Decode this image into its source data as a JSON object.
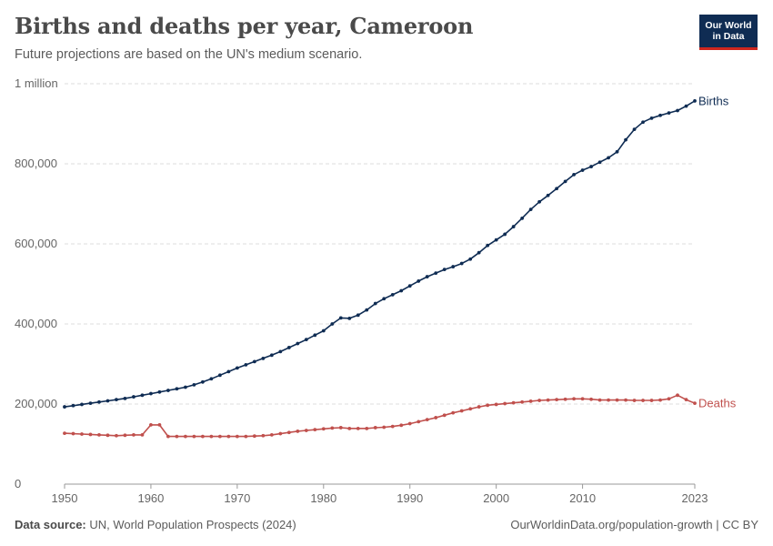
{
  "header": {
    "title": "Births and deaths per year, Cameroon",
    "subtitle": "Future projections are based on the UN's medium scenario."
  },
  "logo": {
    "line1": "Our World",
    "line2": "in Data"
  },
  "footer": {
    "source_label": "Data source:",
    "source_text": "UN, World Population Prospects (2024)",
    "link": "OurWorldinData.org/population-growth | CC BY"
  },
  "colors": {
    "births": "#0f2c53",
    "deaths": "#c0504d",
    "grid": "#dddddd",
    "axis": "#666666"
  },
  "chart_data": {
    "type": "line",
    "title": "Births and deaths per year, Cameroon",
    "subtitle": "Future projections are based on the UN's medium scenario.",
    "xlabel": "",
    "ylabel": "",
    "xlim": [
      1950,
      2023
    ],
    "ylim": [
      0,
      1000000
    ],
    "x_ticks": [
      1950,
      1960,
      1970,
      1980,
      1990,
      2000,
      2010,
      2023
    ],
    "x_tick_labels": [
      "1950",
      "1960",
      "1970",
      "1980",
      "1990",
      "2000",
      "2010",
      "2023"
    ],
    "y_ticks": [
      0,
      200000,
      400000,
      600000,
      800000,
      1000000
    ],
    "y_tick_labels": [
      "0",
      "200,000",
      "400,000",
      "600,000",
      "800,000",
      "1 million"
    ],
    "grid": "horizontal dashed",
    "legend": "inline labels at line ends (right)",
    "x": [
      1950,
      1951,
      1952,
      1953,
      1954,
      1955,
      1956,
      1957,
      1958,
      1959,
      1960,
      1961,
      1962,
      1963,
      1964,
      1965,
      1966,
      1967,
      1968,
      1969,
      1970,
      1971,
      1972,
      1973,
      1974,
      1975,
      1976,
      1977,
      1978,
      1979,
      1980,
      1981,
      1982,
      1983,
      1984,
      1985,
      1986,
      1987,
      1988,
      1989,
      1990,
      1991,
      1992,
      1993,
      1994,
      1995,
      1996,
      1997,
      1998,
      1999,
      2000,
      2001,
      2002,
      2003,
      2004,
      2005,
      2006,
      2007,
      2008,
      2009,
      2010,
      2011,
      2012,
      2013,
      2014,
      2015,
      2016,
      2017,
      2018,
      2019,
      2020,
      2021,
      2022,
      2023
    ],
    "series": [
      {
        "name": "Births",
        "color": "#0f2c53",
        "values": [
          193000,
          196000,
          199000,
          202000,
          205000,
          208000,
          211000,
          214000,
          218000,
          222000,
          226000,
          230000,
          234000,
          238000,
          242000,
          248000,
          255000,
          263000,
          272000,
          281000,
          290000,
          298000,
          306000,
          314000,
          322000,
          331000,
          341000,
          351000,
          361000,
          372000,
          383000,
          400000,
          415000,
          414000,
          422000,
          435000,
          451000,
          463000,
          473000,
          483000,
          495000,
          507000,
          518000,
          527000,
          536000,
          543000,
          551000,
          562000,
          578000,
          596000,
          610000,
          624000,
          643000,
          664000,
          686000,
          705000,
          721000,
          738000,
          756000,
          773000,
          784000,
          793000,
          804000,
          815000,
          830000,
          860000,
          886000,
          904000,
          914000,
          921000,
          927000,
          933000,
          944000,
          957000
        ]
      },
      {
        "name": "Deaths",
        "color": "#c0504d",
        "values": [
          127000,
          126000,
          125000,
          124000,
          123000,
          122000,
          121000,
          122000,
          123000,
          123000,
          148000,
          148000,
          119000,
          119000,
          119000,
          119000,
          119000,
          119000,
          119000,
          119000,
          119000,
          119000,
          120000,
          121000,
          123000,
          126000,
          129000,
          132000,
          134000,
          136000,
          138000,
          140000,
          141000,
          139000,
          139000,
          139000,
          141000,
          142000,
          144000,
          147000,
          151000,
          156000,
          161000,
          166000,
          172000,
          178000,
          183000,
          188000,
          193000,
          197000,
          199000,
          201000,
          203000,
          205000,
          207000,
          209000,
          210000,
          211000,
          212000,
          213000,
          213000,
          212000,
          210000,
          210000,
          210000,
          210000,
          209000,
          209000,
          209000,
          210000,
          213000,
          222000,
          211000,
          202000
        ]
      }
    ]
  }
}
